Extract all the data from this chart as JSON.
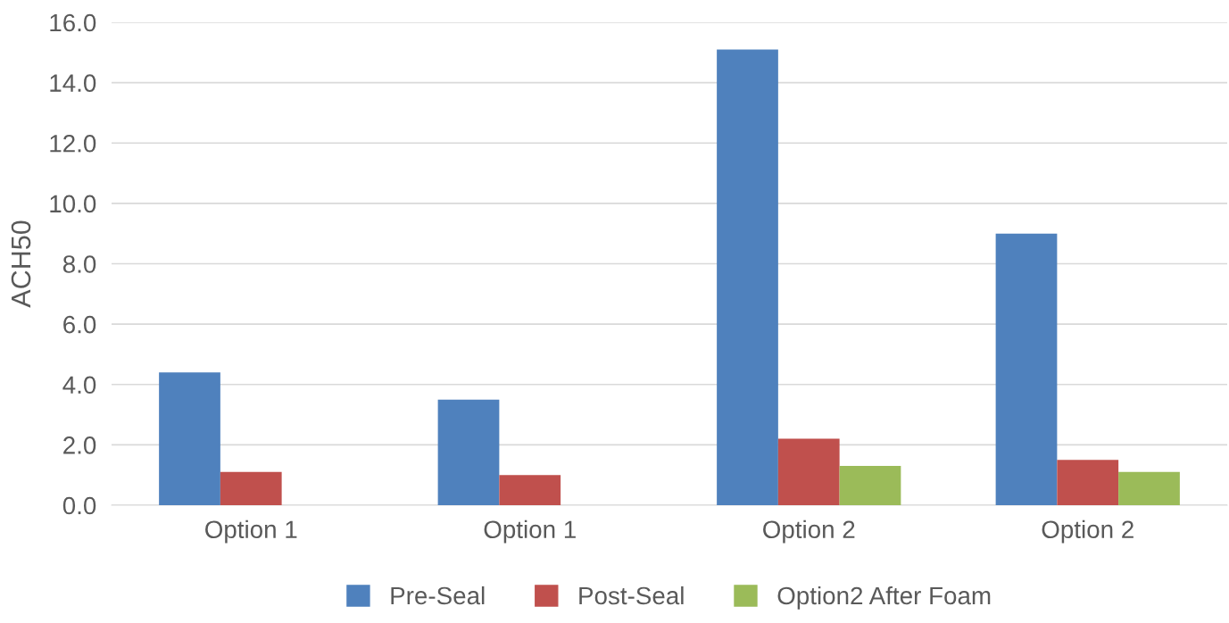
{
  "chart_data": {
    "type": "bar",
    "ylabel": "ACH50",
    "categories": [
      "Option 1",
      "Option 1",
      "Option 2",
      "Option 2"
    ],
    "series": [
      {
        "name": "Pre-Seal",
        "color": "#4f81bd",
        "values": [
          4.4,
          3.5,
          15.1,
          9.0
        ]
      },
      {
        "name": "Post-Seal",
        "color": "#c0504d",
        "values": [
          1.1,
          1.0,
          2.2,
          1.5
        ]
      },
      {
        "name": "Option2 After Foam",
        "color": "#9bbb59",
        "values": [
          null,
          null,
          1.3,
          1.1
        ]
      }
    ],
    "ylim": [
      0,
      16
    ],
    "yticks": [
      {
        "value": 0,
        "label": "0.0"
      },
      {
        "value": 2,
        "label": "2.0"
      },
      {
        "value": 4,
        "label": "4.0"
      },
      {
        "value": 6,
        "label": "6.0"
      },
      {
        "value": 8,
        "label": "8.0"
      },
      {
        "value": 10,
        "label": "10.0"
      },
      {
        "value": 12,
        "label": "12.0"
      },
      {
        "value": 14,
        "label": "14.0"
      },
      {
        "value": 16,
        "label": "16.0"
      }
    ],
    "grid": "y",
    "legend": "bottom"
  }
}
